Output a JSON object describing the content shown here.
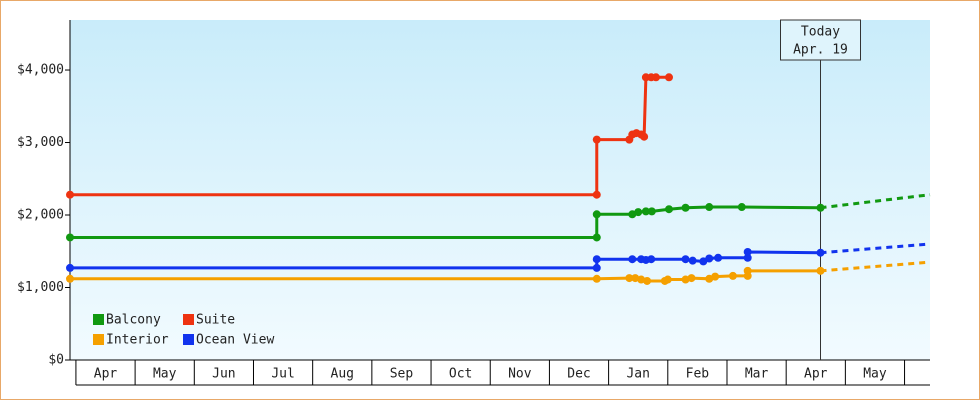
{
  "chart_data": {
    "type": "line",
    "xlim": [
      -0.1,
      14.43
    ],
    "ylim": [
      0,
      4690
    ],
    "xticks": [
      {
        "value": 0.5,
        "label": "Apr"
      },
      {
        "value": 1.5,
        "label": "May"
      },
      {
        "value": 2.5,
        "label": "Jun"
      },
      {
        "value": 3.5,
        "label": "Jul"
      },
      {
        "value": 4.5,
        "label": "Aug"
      },
      {
        "value": 5.5,
        "label": "Sep"
      },
      {
        "value": 6.5,
        "label": "Oct"
      },
      {
        "value": 7.5,
        "label": "Nov"
      },
      {
        "value": 8.5,
        "label": "Dec"
      },
      {
        "value": 9.5,
        "label": "Jan"
      },
      {
        "value": 10.5,
        "label": "Feb"
      },
      {
        "value": 11.5,
        "label": "Mar"
      },
      {
        "value": 12.5,
        "label": "Apr"
      },
      {
        "value": 13.5,
        "label": "May"
      }
    ],
    "yticks": [
      {
        "value": 0,
        "label": "$0"
      },
      {
        "value": 1000,
        "label": "$1,000"
      },
      {
        "value": 2000,
        "label": "$2,000"
      },
      {
        "value": 3000,
        "label": "$3,000"
      },
      {
        "value": 4000,
        "label": "$4,000"
      }
    ],
    "annotation": {
      "x": 12.58,
      "lines": [
        "Today",
        "Apr. 19"
      ]
    },
    "series": [
      {
        "name": "Balcony",
        "color": "#119911",
        "x": [
          -0.1,
          8.8,
          8.8,
          9.4,
          9.5,
          9.63,
          9.73,
          10.02,
          10.3,
          10.7,
          11.25,
          12.58
        ],
        "values": [
          1690,
          1690,
          2010,
          2010,
          2040,
          2050,
          2050,
          2080,
          2100,
          2110,
          2110,
          2100
        ],
        "forecast": {
          "x": [
            12.58,
            13.5,
            14.43
          ],
          "values": [
            2100,
            2190,
            2280
          ]
        }
      },
      {
        "name": "Suite",
        "color": "#ee3311",
        "x": [
          -0.1,
          8.8,
          8.8,
          9.35,
          9.4,
          9.47,
          9.55,
          9.6,
          9.63,
          9.72,
          9.8,
          10.02
        ],
        "values": [
          2280,
          2280,
          3040,
          3040,
          3110,
          3130,
          3110,
          3080,
          3900,
          3900,
          3900,
          3900
        ]
      },
      {
        "name": "Interior",
        "color": "#f5a000",
        "x": [
          -0.1,
          8.8,
          9.35,
          9.45,
          9.55,
          9.65,
          9.95,
          10.0,
          10.3,
          10.4,
          10.7,
          10.8,
          11.1,
          11.35,
          11.35,
          12.58
        ],
        "values": [
          1120,
          1120,
          1130,
          1130,
          1110,
          1090,
          1090,
          1110,
          1110,
          1130,
          1120,
          1150,
          1160,
          1160,
          1230,
          1230
        ],
        "forecast": {
          "x": [
            12.58,
            13.5,
            14.43
          ],
          "values": [
            1230,
            1290,
            1350
          ]
        }
      },
      {
        "name": "Ocean View",
        "color": "#1133ee",
        "x": [
          -0.1,
          8.8,
          8.8,
          9.4,
          9.55,
          9.63,
          9.72,
          10.3,
          10.42,
          10.6,
          10.7,
          10.85,
          11.35,
          11.35,
          12.58
        ],
        "values": [
          1270,
          1270,
          1390,
          1390,
          1390,
          1380,
          1390,
          1390,
          1370,
          1360,
          1400,
          1410,
          1410,
          1490,
          1480
        ],
        "forecast": {
          "x": [
            12.58,
            13.5,
            14.43
          ],
          "values": [
            1480,
            1540,
            1600
          ]
        }
      }
    ]
  }
}
